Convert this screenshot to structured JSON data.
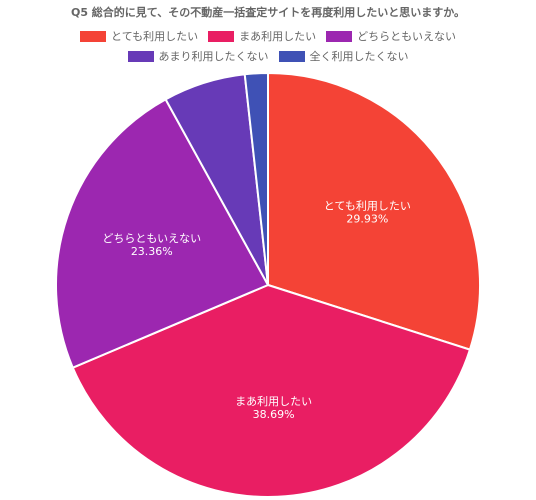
{
  "chart_data": {
    "type": "pie",
    "title": "Q5 総合的に見て、その不動産一括査定サイトを再度利用したいと思いますか。",
    "legend_position": "top",
    "categories": [
      "とても利用したい",
      "まあ利用したい",
      "どちらともいえない",
      "あまり利用したくない",
      "全く利用したくない"
    ],
    "values": [
      29.93,
      38.69,
      23.36,
      6.27,
      1.75
    ],
    "value_labels": [
      "29.93%",
      "38.69%",
      "23.36%",
      "",
      ""
    ],
    "colors": [
      "#f44336",
      "#e91e63",
      "#9c27b0",
      "#673ab7",
      "#3f51b5"
    ]
  }
}
